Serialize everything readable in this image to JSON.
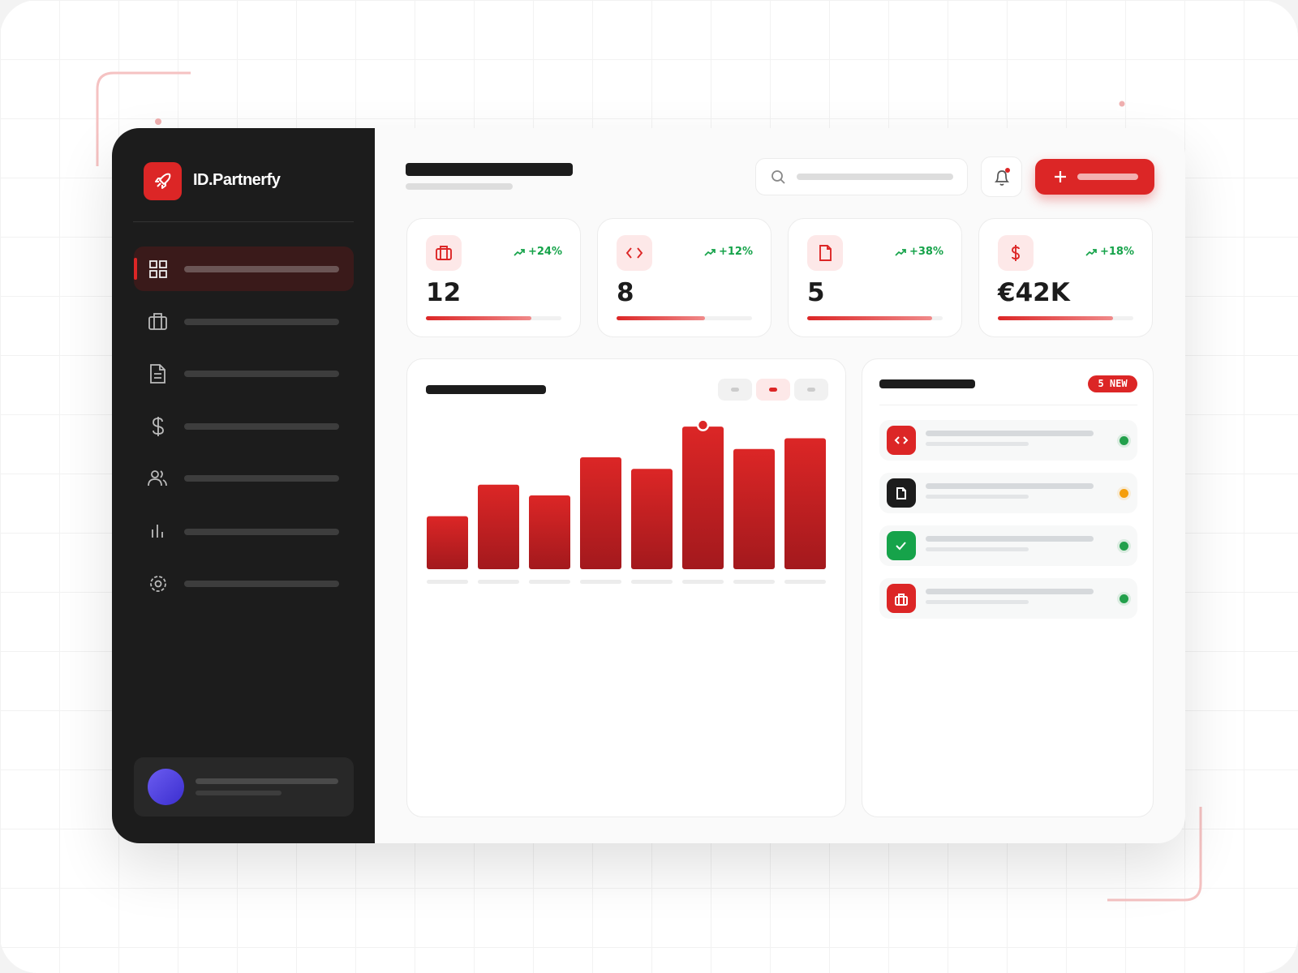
{
  "brand": "ID.Partnerfy",
  "stats": [
    {
      "trend": "+24%",
      "value": "12",
      "progress": 78
    },
    {
      "trend": "+12%",
      "value": "8",
      "progress": 65
    },
    {
      "trend": "+38%",
      "value": "5",
      "progress": 92
    },
    {
      "trend": "+18%",
      "value": "€42K",
      "progress": 85
    }
  ],
  "activity": {
    "badge": "5 NEW"
  },
  "chart_data": {
    "type": "bar",
    "values": [
      64,
      102,
      89,
      135,
      121,
      172,
      145,
      158
    ],
    "ylim": [
      0,
      180
    ]
  }
}
